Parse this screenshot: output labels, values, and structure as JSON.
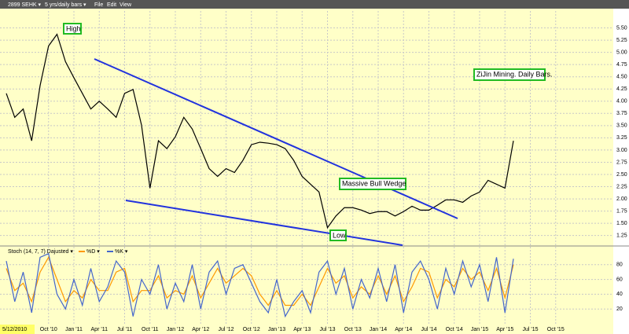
{
  "toolbar": {
    "symbol": "2899 SEHK ▾",
    "period": "5 yrs/daily bars ▾",
    "menus": [
      "File",
      "Edit",
      "View"
    ],
    "start_date": "5/12/2010"
  },
  "annotations": {
    "high": "High",
    "low": "Low",
    "wedge": "Massive Bull Wedge",
    "note": "ZiJin Mining. Daily Bars."
  },
  "chart_data": [
    {
      "type": "line",
      "color": "#000000",
      "categories": [
        null,
        null,
        null,
        null,
        null,
        "Oct '10",
        null,
        null,
        "Jan '11",
        null,
        null,
        "Apr '11",
        null,
        null,
        "Jul '11",
        null,
        null,
        "Oct '11",
        null,
        null,
        "Jan '12",
        null,
        null,
        "Apr '12",
        null,
        null,
        "Jul '12",
        null,
        null,
        "Oct '12",
        null,
        null,
        "Jan '13",
        null,
        null,
        "Apr '13",
        null,
        null,
        "Jul '13",
        null,
        null,
        "Oct '13",
        null,
        null,
        "Jan '14",
        null,
        null,
        "Apr '14",
        null,
        null,
        "Jul '14",
        null,
        null,
        "Oct '14",
        null,
        null,
        "Jan '15",
        null,
        null,
        "Apr '15",
        null,
        null,
        "Jul '15",
        null,
        null,
        "Oct '15",
        null,
        null
      ],
      "values": [
        4.16,
        3.67,
        3.84,
        3.19,
        4.32,
        5.13,
        5.37,
        4.81,
        4.48,
        4.16,
        3.84,
        4.0,
        3.84,
        3.67,
        4.16,
        4.24,
        3.51,
        2.22,
        3.19,
        3.03,
        3.27,
        3.67,
        3.43,
        3.03,
        2.62,
        2.46,
        2.62,
        2.54,
        2.79,
        3.11,
        3.16,
        3.14,
        3.11,
        3.03,
        2.79,
        2.46,
        2.3,
        2.14,
        1.41,
        1.65,
        1.82,
        1.82,
        1.77,
        1.7,
        1.74,
        1.74,
        1.65,
        1.74,
        1.85,
        1.77,
        1.77,
        1.87,
        1.98,
        1.98,
        1.93,
        2.06,
        2.14,
        2.38,
        2.3,
        2.22,
        3.19,
        null,
        null,
        null,
        null,
        null,
        null,
        null
      ],
      "ylim": [
        1.1,
        5.75
      ],
      "yticks": [
        {
          "value": 1.25,
          "label": "1.25"
        },
        {
          "value": 1.5,
          "label": "1.50"
        },
        {
          "value": 1.75,
          "label": "1.75"
        },
        {
          "value": 2.0,
          "label": "2.00"
        },
        {
          "value": 2.25,
          "label": "2.25"
        },
        {
          "value": 2.5,
          "label": "2.50"
        },
        {
          "value": 2.75,
          "label": "2.75"
        },
        {
          "value": 3.0,
          "label": "3.00"
        },
        {
          "value": 3.25,
          "label": "3.25"
        },
        {
          "value": 3.5,
          "label": "3.50"
        },
        {
          "value": 3.75,
          "label": "3.75"
        },
        {
          "value": 4.0,
          "label": "4.00"
        },
        {
          "value": 4.25,
          "label": "4.25"
        },
        {
          "value": 4.5,
          "label": "4.50"
        },
        {
          "value": 4.75,
          "label": "4.75"
        },
        {
          "value": 5.0,
          "label": "5.00"
        },
        {
          "value": 5.25,
          "label": "5.25"
        },
        {
          "value": 5.5,
          "label": "5.50"
        }
      ],
      "grid": true
    },
    {
      "type": "line",
      "title": "Stoch (14, 7, 7) Dajusted ▾",
      "series": [
        {
          "name": "%D ▾",
          "color": "#ff9900",
          "values": [
            75,
            45,
            55,
            30,
            70,
            90,
            60,
            30,
            45,
            35,
            60,
            45,
            45,
            70,
            75,
            30,
            45,
            45,
            65,
            35,
            45,
            40,
            65,
            35,
            55,
            75,
            55,
            65,
            75,
            65,
            40,
            25,
            45,
            25,
            25,
            40,
            25,
            50,
            75,
            55,
            65,
            35,
            50,
            40,
            65,
            40,
            65,
            30,
            50,
            75,
            70,
            35,
            60,
            50,
            75,
            60,
            70,
            45,
            75,
            35,
            80,
            null,
            null,
            null,
            null,
            null,
            null,
            null
          ]
        },
        {
          "name": "%K ▾",
          "color": "#4466cc",
          "values": [
            85,
            30,
            70,
            15,
            90,
            95,
            40,
            20,
            60,
            25,
            75,
            30,
            50,
            85,
            70,
            10,
            60,
            40,
            80,
            20,
            55,
            30,
            80,
            20,
            70,
            85,
            40,
            75,
            80,
            55,
            30,
            15,
            60,
            10,
            30,
            45,
            15,
            70,
            85,
            40,
            75,
            20,
            60,
            35,
            75,
            30,
            80,
            15,
            70,
            85,
            60,
            20,
            75,
            40,
            85,
            50,
            80,
            30,
            90,
            15,
            88,
            null,
            null,
            null,
            null,
            null,
            null,
            null
          ]
        }
      ],
      "ylim": [
        0,
        100
      ],
      "yticks": [
        20,
        40,
        60,
        80
      ],
      "grid": true
    }
  ]
}
